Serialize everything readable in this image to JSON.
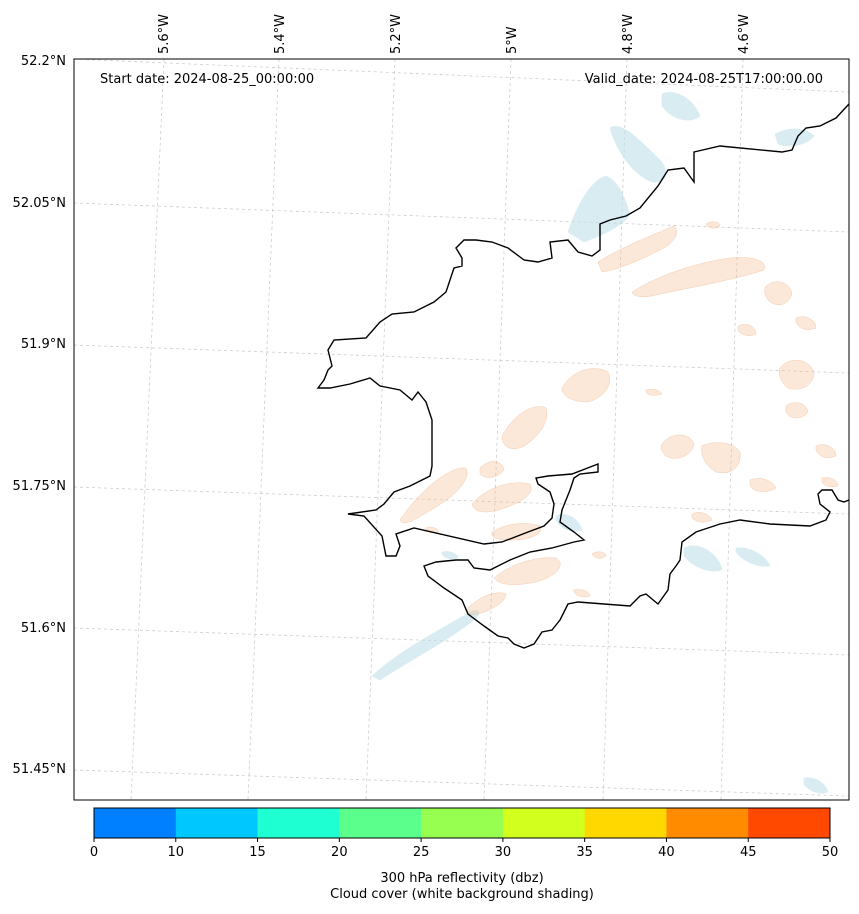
{
  "map": {
    "start_date": "Start date: 2024-08-25_00:00:00",
    "valid_date": "Valid_date: 2024-08-25T17:00:00.00",
    "lon_labels": [
      "5.6°W",
      "5.4°W",
      "5.2°W",
      "5°W",
      "4.8°W",
      "4.6°W"
    ],
    "lat_labels": [
      "52.2°N",
      "52.05°N",
      "51.9°N",
      "51.75°N",
      "51.6°N",
      "51.45°N"
    ],
    "coastline_color": "#000000",
    "reflectivity_color": "#f2b98a",
    "cloud_color": "#bfe0ea"
  },
  "colorbar": {
    "ticks": [
      "0",
      "10",
      "15",
      "20",
      "25",
      "30",
      "35",
      "40",
      "45",
      "50"
    ],
    "colors": [
      "#0080ff",
      "#00c8ff",
      "#1effd2",
      "#5aff8c",
      "#96ff50",
      "#d2ff1e",
      "#ffd800",
      "#ff8c00",
      "#ff4800"
    ],
    "label_line1": "300 hPa reflectivity (dbz)",
    "label_line2": "Cloud cover (white background shading)"
  }
}
